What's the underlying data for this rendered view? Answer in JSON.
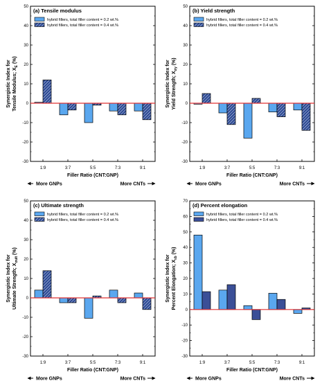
{
  "colors": {
    "series1_fill": "#5aa7ef",
    "series2_fill": "#1f3f86",
    "series2_fill_d": "#3b4f97",
    "zero_line": "#e03030",
    "axis": "#000000"
  },
  "chart_data": [
    {
      "type": "bar",
      "title": "(a) Tensile modulus",
      "xlabel": "Filler Ratio (CNT:GNP)",
      "ylabel": [
        "Synergistic Index for",
        "Tensile Modulus; X",
        "E",
        " (%)"
      ],
      "ylim": [
        -30,
        50
      ],
      "yticks": [
        -30,
        -20,
        -10,
        0,
        10,
        20,
        30,
        40,
        50
      ],
      "categories": [
        "1:9",
        "3:7",
        "5:5",
        "7:3",
        "9:1"
      ],
      "series": [
        {
          "name": "hybrid fillers, total filler content = 0.2 wt.%",
          "values": [
            0.5,
            -6,
            -10,
            -4,
            -4
          ]
        },
        {
          "name": "hybrid fillers, total filler content = 0.4 wt.%",
          "values": [
            12,
            -3.5,
            -1,
            -6,
            -8.5
          ]
        }
      ],
      "arrows": {
        "left": "More GNPs",
        "right": "More CNTs"
      }
    },
    {
      "type": "bar",
      "title": "(b) Yield strength",
      "xlabel": "Filler Ratio (CNT:GNP)",
      "ylabel": [
        "Synergistic Index for",
        "Yield Strength; X",
        "σy",
        " (%)"
      ],
      "ylim": [
        -30,
        50
      ],
      "yticks": [
        -30,
        -20,
        -10,
        0,
        10,
        20,
        30,
        40,
        50
      ],
      "categories": [
        "1:9",
        "3:7",
        "5:5",
        "7:3",
        "9:1"
      ],
      "series": [
        {
          "name": "hybrid fillers, total filler content = 0.2 wt.%",
          "values": [
            -0.5,
            -5,
            -18,
            -4.5,
            -3.5
          ]
        },
        {
          "name": "hybrid fillers, total filler content = 0.4 wt.%",
          "values": [
            5,
            -11,
            2.5,
            -7,
            -14
          ]
        }
      ],
      "arrows": {
        "left": "More GNPs",
        "right": "More CNTs"
      }
    },
    {
      "type": "bar",
      "title": "(c) Ultimate strength",
      "xlabel": "Filler Ratio (CNT:GNP)",
      "ylabel": [
        "Synergistic Index for",
        "Ultimate Strength; X",
        "σult",
        " (%)"
      ],
      "ylim": [
        -30,
        50
      ],
      "yticks": [
        -30,
        -20,
        -10,
        0,
        10,
        20,
        30,
        40,
        50
      ],
      "categories": [
        "1:9",
        "3:7",
        "5:5",
        "7:3",
        "9:1"
      ],
      "series": [
        {
          "name": "hybrid fillers, total filler content = 0.2 wt.%",
          "values": [
            4,
            -2.5,
            -10.5,
            4,
            2.5
          ]
        },
        {
          "name": "hybrid fillers, total filler content = 0.4 wt.%",
          "values": [
            14,
            -2.5,
            1,
            -2.5,
            -6
          ]
        }
      ],
      "arrows": {
        "left": "More GNPs",
        "right": "More CNTs"
      }
    },
    {
      "type": "bar",
      "title": "(d) Percent elongation",
      "xlabel": "Filler Ratio (CNT:GNP)",
      "ylabel": [
        "Synergistic Index for",
        "Percent Elongation; X",
        "εb",
        " (%)"
      ],
      "ylim": [
        -30,
        70
      ],
      "yticks": [
        -30,
        -20,
        -10,
        0,
        10,
        20,
        30,
        40,
        50,
        60,
        70
      ],
      "categories": [
        "1:9",
        "3:7",
        "5:5",
        "7:3",
        "9:1"
      ],
      "series": [
        {
          "name": "hybrid fillers, total filler content = 0.2 wt.%",
          "values": [
            48,
            12.5,
            2.5,
            10.5,
            -2.5
          ]
        },
        {
          "name": "hybrid fillers, total filler content = 0.4 wt.%",
          "values": [
            11.5,
            16,
            -6.5,
            6.5,
            1
          ]
        }
      ],
      "arrows": {
        "left": "More GNPs",
        "right": "More CNTs"
      }
    }
  ]
}
